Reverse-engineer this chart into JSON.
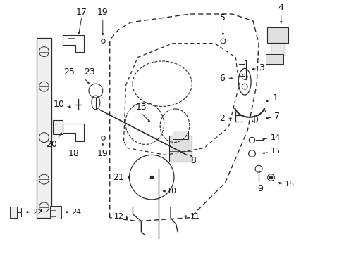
{
  "bg_color": "#ffffff",
  "fig_width": 4.89,
  "fig_height": 3.6,
  "dpi": 100,
  "line_color": "#2a2a2a",
  "text_color": "#111111"
}
